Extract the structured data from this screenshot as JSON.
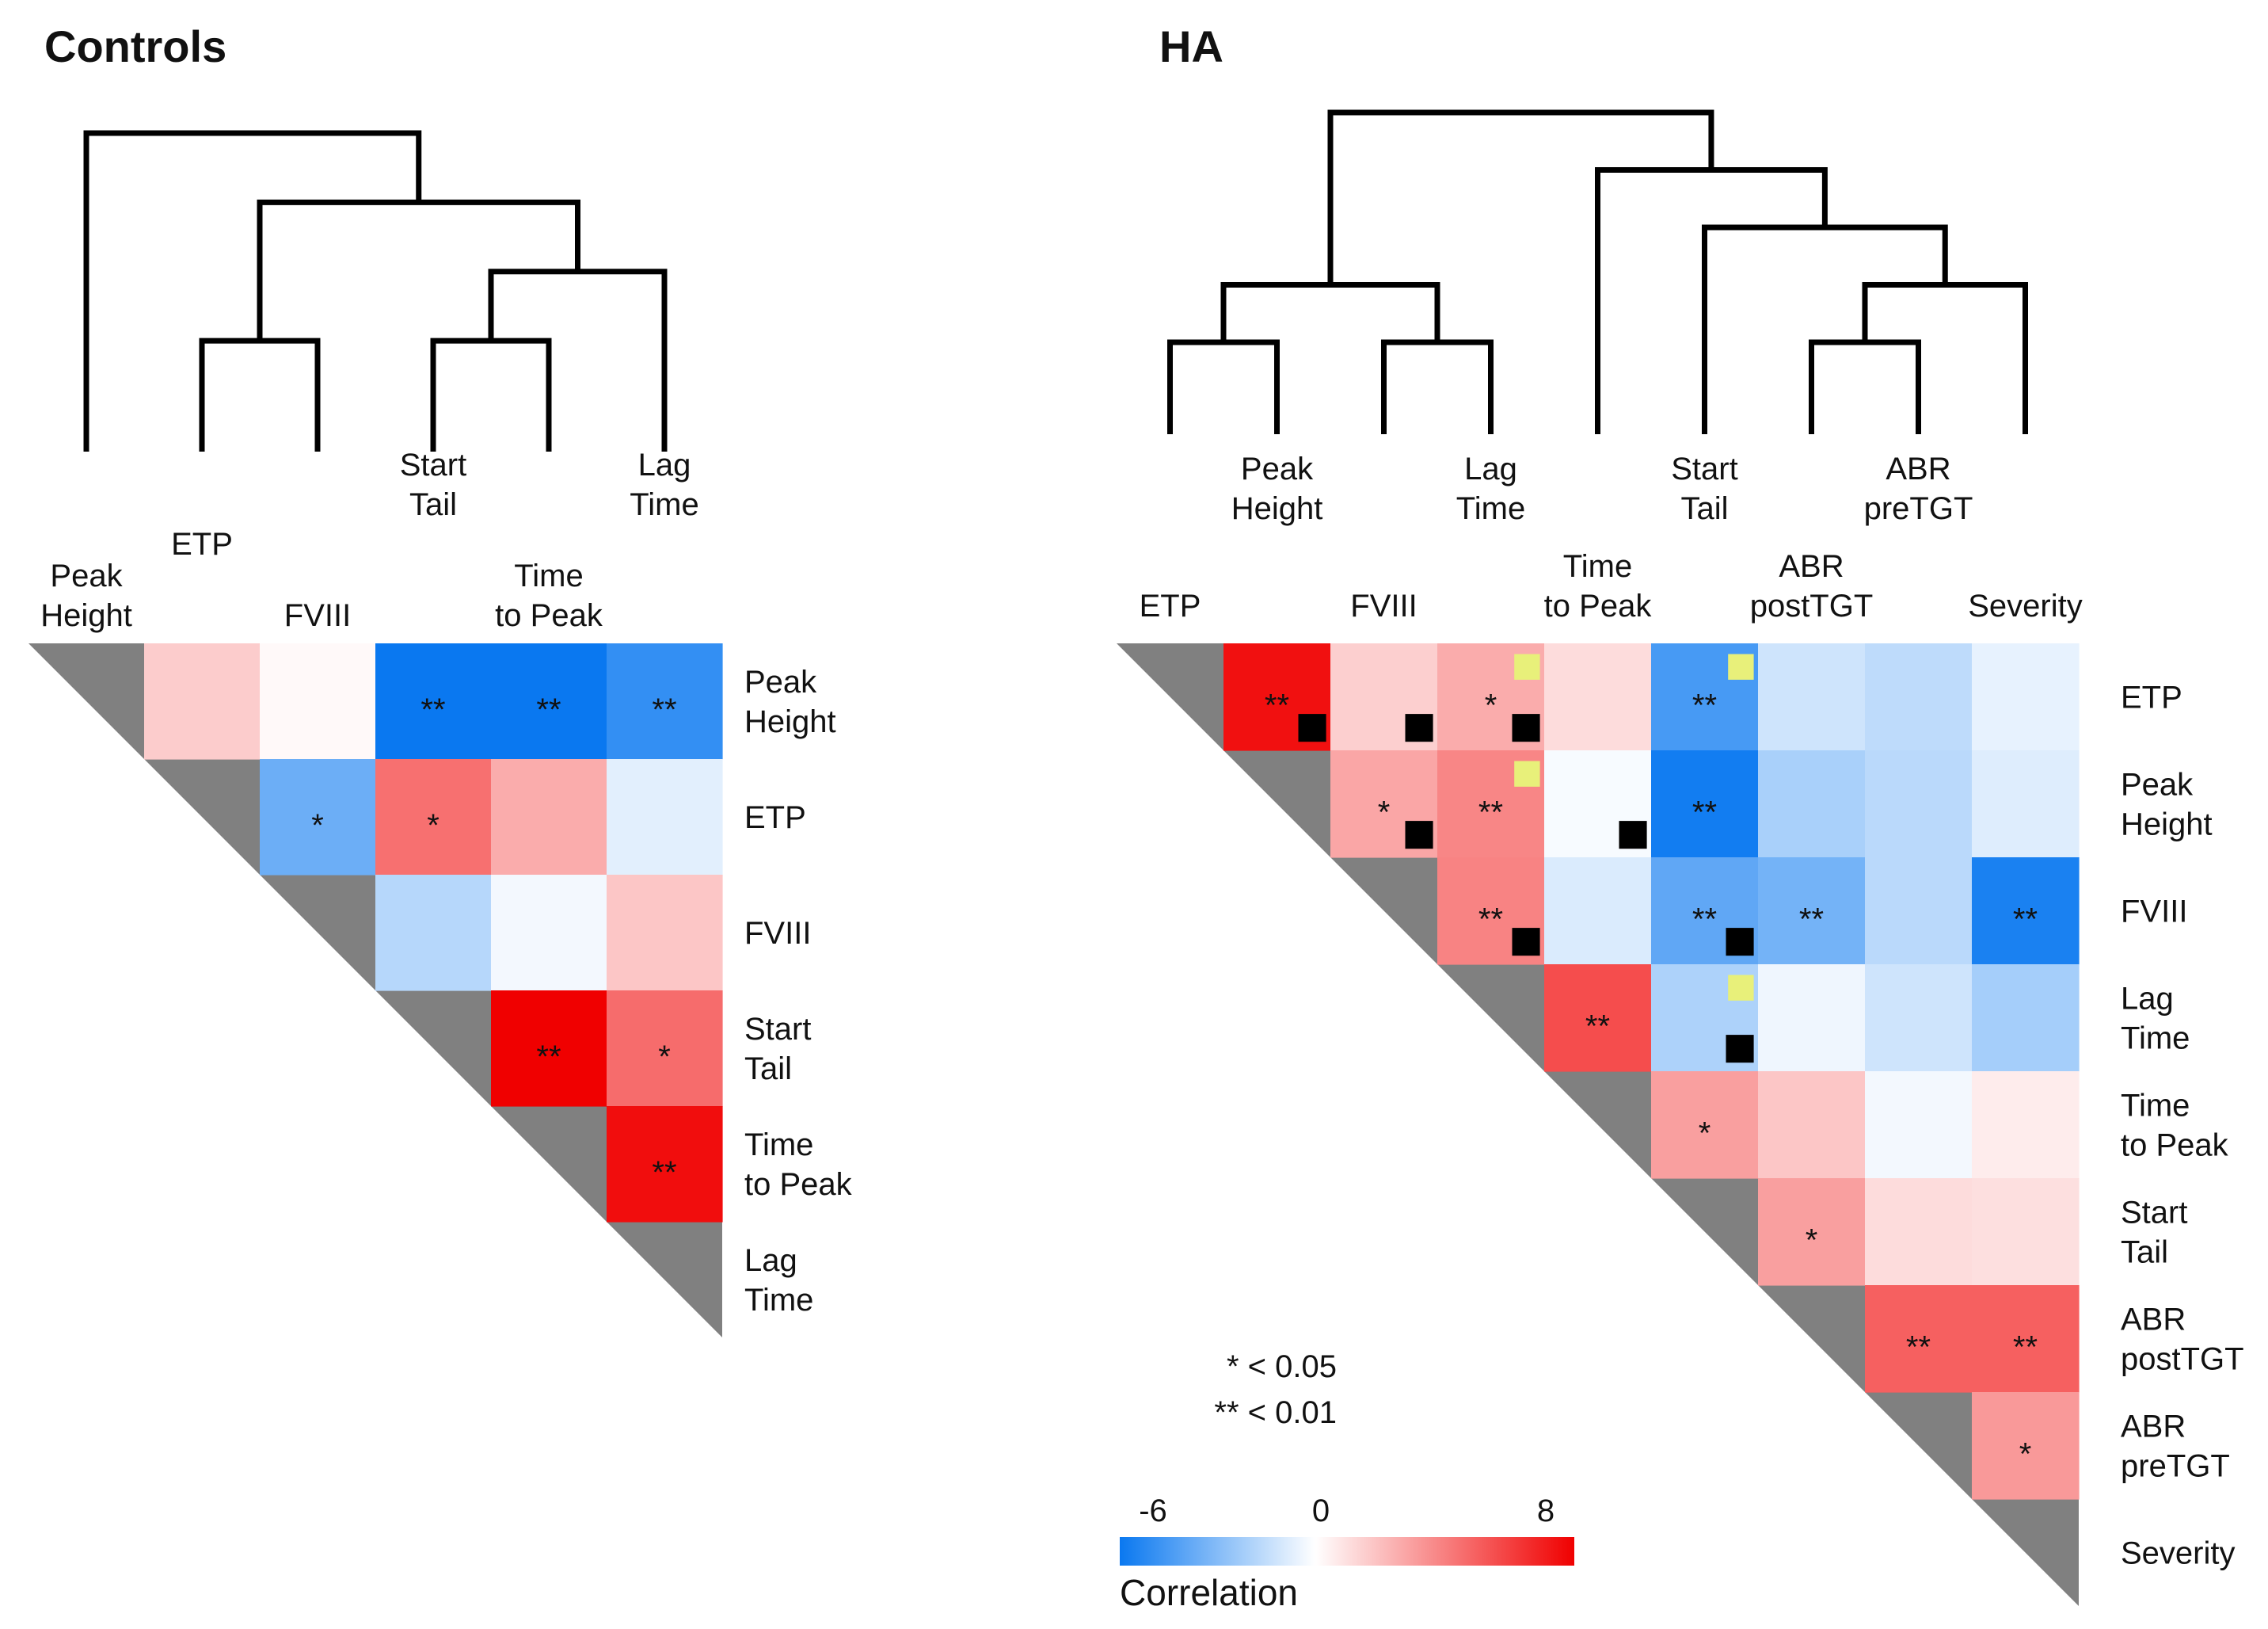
{
  "controls": {
    "title": "Controls",
    "leaves": [
      [
        "Peak",
        "Height"
      ],
      [
        "ETP"
      ],
      [
        "FVIII"
      ],
      [
        "Start",
        "Tail"
      ],
      [
        "Time",
        "to Peak"
      ],
      [
        "Lag",
        "Time"
      ]
    ],
    "row_labels": [
      [
        "Peak",
        "Height"
      ],
      [
        "ETP"
      ],
      [
        "FVIII"
      ],
      [
        "Start",
        "Tail"
      ],
      [
        "Time",
        "to Peak"
      ],
      [
        "Lag",
        "Time"
      ]
    ],
    "tree": [
      0,
      [
        [
          1,
          2
        ],
        [
          [
            3,
            4
          ],
          5
        ]
      ]
    ]
  },
  "ha": {
    "title": "HA",
    "leaves": [
      [
        "ETP"
      ],
      [
        "Peak",
        "Height"
      ],
      [
        "FVIII"
      ],
      [
        "Lag",
        "Time"
      ],
      [
        "Time",
        "to Peak"
      ],
      [
        "Start",
        "Tail"
      ],
      [
        "ABR",
        "postTGT"
      ],
      [
        "ABR",
        "preTGT"
      ],
      [
        "Severity"
      ]
    ],
    "row_labels": [
      [
        "ETP"
      ],
      [
        "Peak",
        "Height"
      ],
      [
        "FVIII"
      ],
      [
        "Lag",
        "Time"
      ],
      [
        "Time",
        "to Peak"
      ],
      [
        "Start",
        "Tail"
      ],
      [
        "ABR",
        "postTGT"
      ],
      [
        "ABR",
        "preTGT"
      ],
      [
        "Severity"
      ]
    ],
    "tree": [
      [
        [
          0,
          1
        ],
        [
          2,
          3
        ]
      ],
      [
        4,
        [
          5,
          [
            [
              6,
              7
            ],
            8
          ]
        ]
      ]
    ]
  },
  "legend": {
    "sig1": "* < 0.05",
    "sig2": "** < 0.01",
    "min_label": "-6",
    "mid_label": "0",
    "max_label": "8",
    "title": "Correlation",
    "colors": {
      "negative": "#0a78f0",
      "zero": "#ffffff",
      "positive": "#f00000"
    }
  },
  "chart_data": [
    {
      "type": "heatmap",
      "title": "Controls",
      "variables": [
        "Peak Height",
        "ETP",
        "FVIII",
        "Start Tail",
        "Time to Peak",
        "Lag Time"
      ],
      "scale": [
        -6,
        0,
        8
      ],
      "cells": [
        {
          "row": 0,
          "col": 1,
          "value": 1.6,
          "sig": ""
        },
        {
          "row": 0,
          "col": 2,
          "value": 0.2,
          "sig": ""
        },
        {
          "row": 0,
          "col": 3,
          "value": -6.0,
          "sig": "**"
        },
        {
          "row": 0,
          "col": 4,
          "value": -6.0,
          "sig": "**"
        },
        {
          "row": 0,
          "col": 5,
          "value": -5.0,
          "sig": "**"
        },
        {
          "row": 1,
          "col": 2,
          "value": -3.6,
          "sig": "*"
        },
        {
          "row": 1,
          "col": 3,
          "value": 4.5,
          "sig": "*"
        },
        {
          "row": 1,
          "col": 4,
          "value": 2.6,
          "sig": ""
        },
        {
          "row": 1,
          "col": 5,
          "value": -0.7,
          "sig": ""
        },
        {
          "row": 2,
          "col": 3,
          "value": -1.8,
          "sig": ""
        },
        {
          "row": 2,
          "col": 4,
          "value": -0.3,
          "sig": ""
        },
        {
          "row": 2,
          "col": 5,
          "value": 1.8,
          "sig": ""
        },
        {
          "row": 3,
          "col": 4,
          "value": 8.0,
          "sig": "**"
        },
        {
          "row": 3,
          "col": 5,
          "value": 4.6,
          "sig": "*"
        },
        {
          "row": 4,
          "col": 5,
          "value": 7.6,
          "sig": "**"
        }
      ]
    },
    {
      "type": "heatmap",
      "title": "HA",
      "variables": [
        "ETP",
        "Peak Height",
        "FVIII",
        "Lag Time",
        "Time to Peak",
        "Start Tail",
        "ABR postTGT",
        "ABR preTGT",
        "Severity"
      ],
      "scale": [
        -6,
        0,
        8
      ],
      "cells": [
        {
          "row": 0,
          "col": 1,
          "value": 7.5,
          "sig": "**",
          "black_marker": true
        },
        {
          "row": 0,
          "col": 2,
          "value": 1.5,
          "sig": "",
          "black_marker": true
        },
        {
          "row": 0,
          "col": 3,
          "value": 2.6,
          "sig": "*",
          "black_marker": true,
          "yellow_marker": true
        },
        {
          "row": 0,
          "col": 4,
          "value": 1.1,
          "sig": ""
        },
        {
          "row": 0,
          "col": 5,
          "value": -4.5,
          "sig": "**",
          "yellow_marker": true
        },
        {
          "row": 0,
          "col": 6,
          "value": -1.2,
          "sig": ""
        },
        {
          "row": 0,
          "col": 7,
          "value": -1.6,
          "sig": ""
        },
        {
          "row": 0,
          "col": 8,
          "value": -0.6,
          "sig": ""
        },
        {
          "row": 1,
          "col": 2,
          "value": 2.8,
          "sig": "*",
          "black_marker": true
        },
        {
          "row": 1,
          "col": 3,
          "value": 3.8,
          "sig": "**",
          "yellow_marker": true
        },
        {
          "row": 1,
          "col": 4,
          "value": -0.2,
          "sig": "",
          "black_marker": true
        },
        {
          "row": 1,
          "col": 5,
          "value": -5.8,
          "sig": "**"
        },
        {
          "row": 1,
          "col": 6,
          "value": -2.1,
          "sig": ""
        },
        {
          "row": 1,
          "col": 7,
          "value": -1.7,
          "sig": ""
        },
        {
          "row": 1,
          "col": 8,
          "value": -0.8,
          "sig": ""
        },
        {
          "row": 2,
          "col": 3,
          "value": 3.9,
          "sig": "**",
          "black_marker": true
        },
        {
          "row": 2,
          "col": 4,
          "value": -0.9,
          "sig": ""
        },
        {
          "row": 2,
          "col": 5,
          "value": -3.9,
          "sig": "**",
          "black_marker": true
        },
        {
          "row": 2,
          "col": 6,
          "value": -3.4,
          "sig": "**"
        },
        {
          "row": 2,
          "col": 7,
          "value": -1.7,
          "sig": ""
        },
        {
          "row": 2,
          "col": 8,
          "value": -5.6,
          "sig": "**"
        },
        {
          "row": 3,
          "col": 4,
          "value": 5.6,
          "sig": "**"
        },
        {
          "row": 3,
          "col": 5,
          "value": -2.0,
          "sig": "",
          "black_marker": true,
          "yellow_marker": true
        },
        {
          "row": 3,
          "col": 6,
          "value": -0.4,
          "sig": ""
        },
        {
          "row": 3,
          "col": 7,
          "value": -1.2,
          "sig": ""
        },
        {
          "row": 3,
          "col": 8,
          "value": -2.2,
          "sig": ""
        },
        {
          "row": 4,
          "col": 5,
          "value": 3.0,
          "sig": "*"
        },
        {
          "row": 4,
          "col": 6,
          "value": 1.8,
          "sig": ""
        },
        {
          "row": 4,
          "col": 7,
          "value": -0.3,
          "sig": ""
        },
        {
          "row": 4,
          "col": 8,
          "value": 0.6,
          "sig": ""
        },
        {
          "row": 5,
          "col": 6,
          "value": 3.0,
          "sig": "*"
        },
        {
          "row": 5,
          "col": 7,
          "value": 1.1,
          "sig": ""
        },
        {
          "row": 5,
          "col": 8,
          "value": 1.0,
          "sig": ""
        },
        {
          "row": 6,
          "col": 7,
          "value": 5.0,
          "sig": "**"
        },
        {
          "row": 6,
          "col": 8,
          "value": 5.0,
          "sig": "**"
        },
        {
          "row": 7,
          "col": 8,
          "value": 3.2,
          "sig": "*"
        }
      ]
    }
  ]
}
